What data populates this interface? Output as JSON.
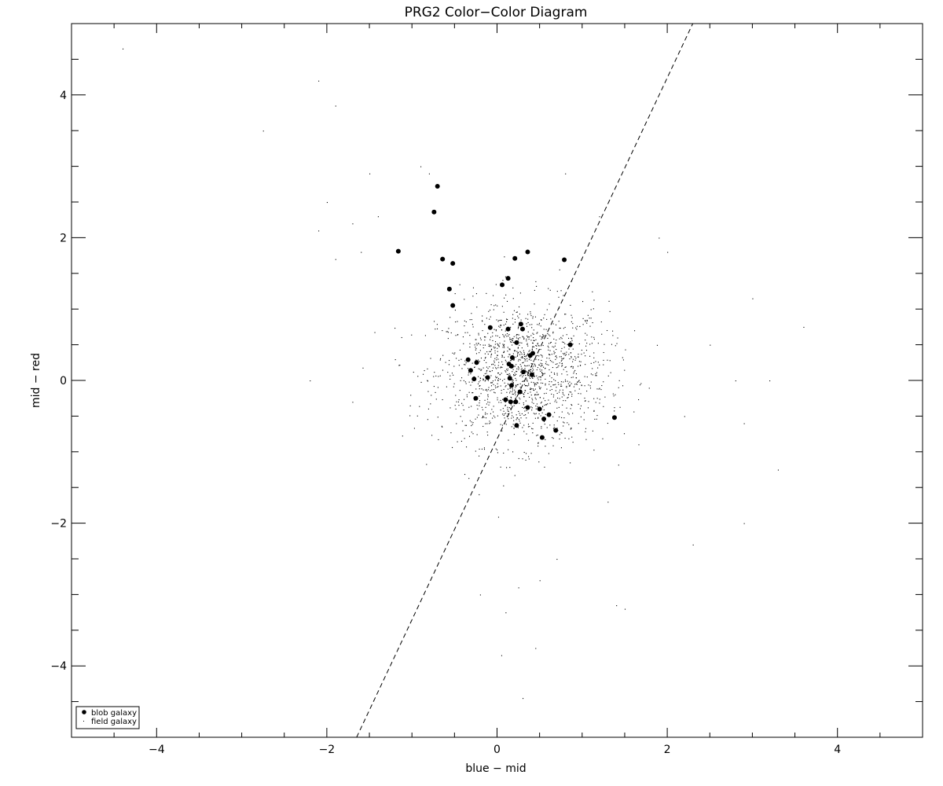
{
  "chart_data": {
    "type": "scatter",
    "title": "PRG2 Color−Color Diagram",
    "xlabel": "blue − mid",
    "ylabel": "mid − red",
    "xlim": [
      -5,
      5
    ],
    "ylim": [
      -5,
      5
    ],
    "x_major_ticks": [
      -4,
      -2,
      0,
      2,
      4
    ],
    "y_major_ticks": [
      -4,
      -2,
      0,
      2,
      4
    ],
    "x_tick_labels": [
      "−4",
      "−2",
      "0",
      "2",
      "4"
    ],
    "y_tick_labels": [
      "−4",
      "−2",
      "0",
      "2",
      "4"
    ],
    "minor_tick_step": 0.5,
    "grid": false,
    "legend_position": "bottom-left",
    "color": "#000000",
    "series": [
      {
        "name": "blob galaxy",
        "marker": "filled-circle",
        "points": [
          [
            -0.7,
            2.72
          ],
          [
            -0.74,
            2.36
          ],
          [
            -1.16,
            1.81
          ],
          [
            -0.64,
            1.7
          ],
          [
            -0.52,
            1.64
          ],
          [
            -0.56,
            1.28
          ],
          [
            -0.52,
            1.05
          ],
          [
            0.21,
            1.71
          ],
          [
            0.36,
            1.8
          ],
          [
            0.79,
            1.69
          ],
          [
            0.13,
            1.43
          ],
          [
            0.06,
            1.34
          ],
          [
            -0.08,
            0.74
          ],
          [
            0.13,
            0.72
          ],
          [
            0.28,
            0.79
          ],
          [
            0.3,
            0.72
          ],
          [
            0.23,
            0.53
          ],
          [
            0.86,
            0.5
          ],
          [
            0.42,
            0.38
          ],
          [
            0.39,
            0.35
          ],
          [
            0.18,
            0.32
          ],
          [
            -0.34,
            0.29
          ],
          [
            -0.24,
            0.25
          ],
          [
            0.14,
            0.23
          ],
          [
            0.17,
            0.2
          ],
          [
            -0.31,
            0.14
          ],
          [
            0.31,
            0.12
          ],
          [
            0.41,
            0.08
          ],
          [
            -0.27,
            0.02
          ],
          [
            -0.11,
            0.04
          ],
          [
            0.15,
            0.03
          ],
          [
            0.17,
            -0.07
          ],
          [
            0.27,
            -0.16
          ],
          [
            -0.25,
            -0.25
          ],
          [
            0.1,
            -0.27
          ],
          [
            0.16,
            -0.3
          ],
          [
            0.22,
            -0.3
          ],
          [
            0.36,
            -0.38
          ],
          [
            0.5,
            -0.4
          ],
          [
            0.61,
            -0.48
          ],
          [
            0.55,
            -0.54
          ],
          [
            0.23,
            -0.63
          ],
          [
            0.69,
            -0.7
          ],
          [
            0.53,
            -0.8
          ],
          [
            1.38,
            -0.52
          ]
        ]
      },
      {
        "name": "field galaxy",
        "marker": "dot",
        "scatter_center": [
          0.3,
          0.1
        ],
        "scatter_spread": [
          0.5,
          0.5
        ],
        "count": 1500,
        "outlier_points": [
          [
            -4.4,
            4.65
          ],
          [
            -2.1,
            4.2
          ],
          [
            -1.9,
            3.85
          ],
          [
            -2.75,
            3.5
          ],
          [
            -0.9,
            3.0
          ],
          [
            -1.5,
            2.9
          ],
          [
            -0.8,
            2.9
          ],
          [
            0.8,
            2.9
          ],
          [
            -2.0,
            2.5
          ],
          [
            -1.7,
            2.2
          ],
          [
            -1.4,
            2.3
          ],
          [
            1.2,
            2.3
          ],
          [
            -2.1,
            2.1
          ],
          [
            -1.9,
            1.7
          ],
          [
            1.9,
            2.0
          ],
          [
            2.0,
            1.8
          ],
          [
            -1.6,
            1.8
          ],
          [
            3.0,
            1.15
          ],
          [
            3.6,
            0.75
          ],
          [
            2.5,
            0.5
          ],
          [
            -2.2,
            0.0
          ],
          [
            2.8,
            0.0
          ],
          [
            3.2,
            0.0
          ],
          [
            -1.7,
            -0.3
          ],
          [
            2.2,
            -0.5
          ],
          [
            2.9,
            -0.6
          ],
          [
            3.3,
            -1.25
          ],
          [
            1.3,
            -1.7
          ],
          [
            2.9,
            -2.0
          ],
          [
            2.3,
            -2.3
          ],
          [
            0.7,
            -2.5
          ],
          [
            0.5,
            -2.8
          ],
          [
            0.25,
            -2.9
          ],
          [
            1.4,
            -3.15
          ],
          [
            1.5,
            -3.2
          ],
          [
            0.1,
            -3.25
          ],
          [
            -0.2,
            -3.0
          ],
          [
            0.45,
            -3.75
          ],
          [
            0.05,
            -3.85
          ],
          [
            0.3,
            -4.45
          ]
        ]
      }
    ],
    "reference_line": {
      "style": "dashed",
      "from": [
        -1.65,
        -5.0
      ],
      "to": [
        2.3,
        5.0
      ]
    }
  }
}
